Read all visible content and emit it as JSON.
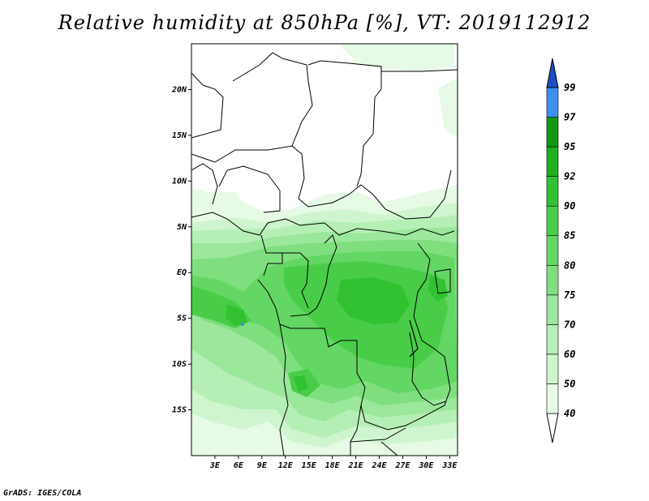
{
  "title": "Relative humidity at 850hPa [%], VT: 2019112912",
  "credit": "GrADS: IGES/COLA",
  "map": {
    "lon_range": [
      0,
      34
    ],
    "lat_range": [
      -20,
      25
    ],
    "lat_ticks": [
      {
        "value": 20,
        "label": "20N"
      },
      {
        "value": 15,
        "label": "15N"
      },
      {
        "value": 10,
        "label": "10N"
      },
      {
        "value": 5,
        "label": "5N"
      },
      {
        "value": 0,
        "label": "EQ"
      },
      {
        "value": -5,
        "label": "5S"
      },
      {
        "value": -10,
        "label": "10S"
      },
      {
        "value": -15,
        "label": "15S"
      }
    ],
    "lon_ticks": [
      {
        "value": 3,
        "label": "3E"
      },
      {
        "value": 6,
        "label": "6E"
      },
      {
        "value": 9,
        "label": "9E"
      },
      {
        "value": 12,
        "label": "12E"
      },
      {
        "value": 15,
        "label": "15E"
      },
      {
        "value": 18,
        "label": "18E"
      },
      {
        "value": 21,
        "label": "21E"
      },
      {
        "value": 24,
        "label": "24E"
      },
      {
        "value": 27,
        "label": "27E"
      },
      {
        "value": 30,
        "label": "30E"
      },
      {
        "value": 33,
        "label": "33E"
      }
    ]
  },
  "colorbar": {
    "levels": [
      "40",
      "50",
      "60",
      "70",
      "75",
      "80",
      "85",
      "90",
      "92",
      "95",
      "97",
      "99"
    ],
    "colors": [
      "#e6fae6",
      "#cff5cf",
      "#b6efb6",
      "#9be79b",
      "#7fdf7f",
      "#63d663",
      "#49cd49",
      "#31c131",
      "#1faf1f",
      "#129812",
      "#3e8ef0",
      "#2366dc",
      "#1a4fc0"
    ]
  }
}
